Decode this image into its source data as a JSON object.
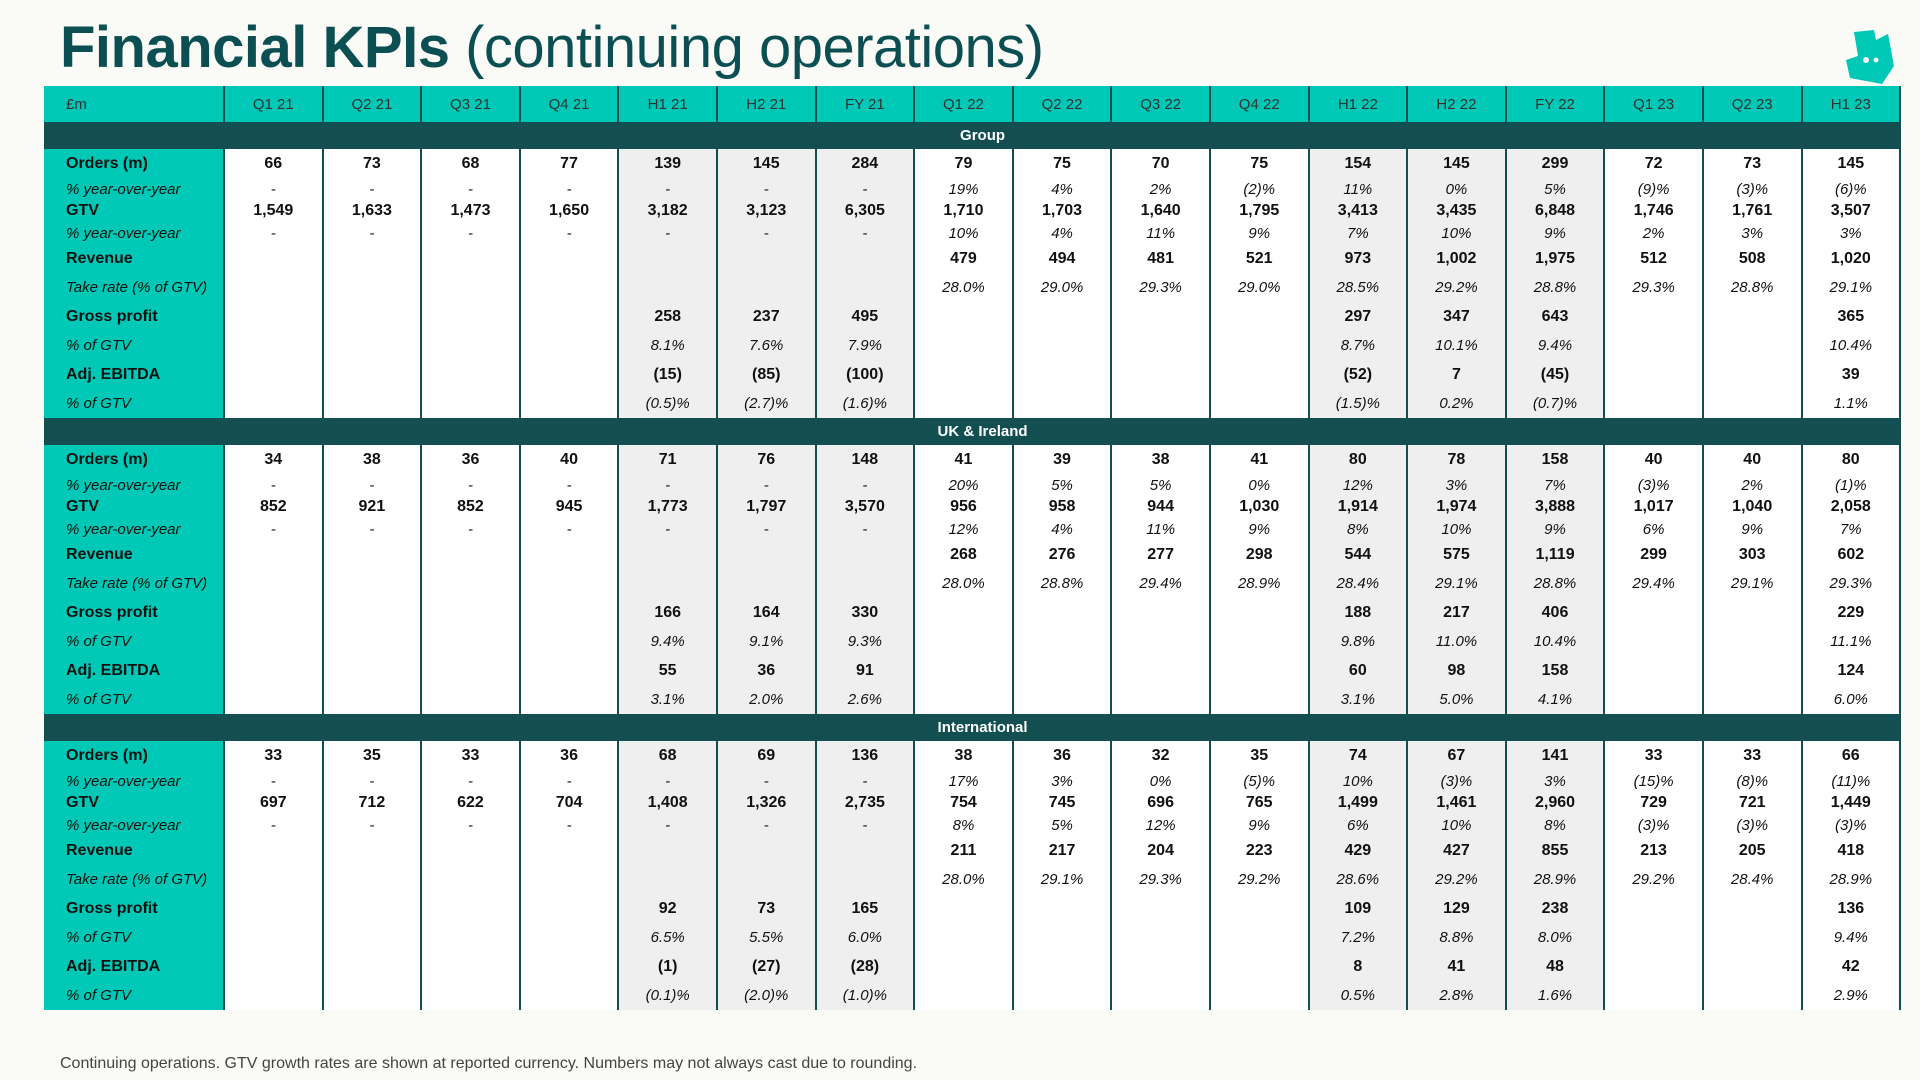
{
  "title": {
    "bold": "Financial KPIs",
    "light": "(continuing operations)"
  },
  "colors": {
    "teal": "#00c8b6",
    "dark": "#134f50",
    "title": "#0b4f53"
  },
  "logo": "deliveroo-kangaroo-icon",
  "columns": [
    "£m",
    "Q1 21",
    "Q2 21",
    "Q3 21",
    "Q4 21",
    "H1 21",
    "H2 21",
    "FY 21",
    "Q1 22",
    "Q2 22",
    "Q3 22",
    "Q4 22",
    "H1 22",
    "H2 22",
    "FY 22",
    "Q1 23",
    "Q2 23",
    "H1 23"
  ],
  "sections": [
    {
      "name": "Group",
      "rows": [
        {
          "label": "Orders (m)",
          "type": "main",
          "values": [
            "66",
            "73",
            "68",
            "77",
            "139",
            "145",
            "284",
            "79",
            "75",
            "70",
            "75",
            "154",
            "145",
            "299",
            "72",
            "73",
            "145"
          ]
        },
        {
          "label": "% year-over-year",
          "type": "sub",
          "short": true,
          "values": [
            "-",
            "-",
            "-",
            "-",
            "-",
            "-",
            "-",
            "19%",
            "4%",
            "2%",
            "(2)%",
            "11%",
            "0%",
            "5%",
            "(9)%",
            "(3)%",
            "(6)%"
          ]
        },
        {
          "label": "GTV",
          "type": "main",
          "short": true,
          "values": [
            "1,549",
            "1,633",
            "1,473",
            "1,650",
            "3,182",
            "3,123",
            "6,305",
            "1,710",
            "1,703",
            "1,640",
            "1,795",
            "3,413",
            "3,435",
            "6,848",
            "1,746",
            "1,761",
            "3,507"
          ]
        },
        {
          "label": "% year-over-year",
          "type": "sub",
          "short": true,
          "values": [
            "-",
            "-",
            "-",
            "-",
            "-",
            "-",
            "-",
            "10%",
            "4%",
            "11%",
            "9%",
            "7%",
            "10%",
            "9%",
            "2%",
            "3%",
            "3%"
          ]
        },
        {
          "label": "Revenue",
          "type": "main",
          "values": [
            "",
            "",
            "",
            "",
            "",
            "",
            "",
            "479",
            "494",
            "481",
            "521",
            "973",
            "1,002",
            "1,975",
            "512",
            "508",
            "1,020"
          ]
        },
        {
          "label": "Take rate (% of GTV)",
          "type": "sub",
          "values": [
            "",
            "",
            "",
            "",
            "",
            "",
            "",
            "28.0%",
            "29.0%",
            "29.3%",
            "29.0%",
            "28.5%",
            "29.2%",
            "28.8%",
            "29.3%",
            "28.8%",
            "29.1%"
          ]
        },
        {
          "label": "Gross profit",
          "type": "main",
          "values": [
            "",
            "",
            "",
            "",
            "258",
            "237",
            "495",
            "",
            "",
            "",
            "",
            "297",
            "347",
            "643",
            "",
            "",
            "365"
          ]
        },
        {
          "label": "% of GTV",
          "type": "sub",
          "values": [
            "",
            "",
            "",
            "",
            "8.1%",
            "7.6%",
            "7.9%",
            "",
            "",
            "",
            "",
            "8.7%",
            "10.1%",
            "9.4%",
            "",
            "",
            "10.4%"
          ]
        },
        {
          "label": "Adj. EBITDA",
          "type": "main",
          "values": [
            "",
            "",
            "",
            "",
            "(15)",
            "(85)",
            "(100)",
            "",
            "",
            "",
            "",
            "(52)",
            "7",
            "(45)",
            "",
            "",
            "39"
          ]
        },
        {
          "label": "% of GTV",
          "type": "sub",
          "values": [
            "",
            "",
            "",
            "",
            "(0.5)%",
            "(2.7)%",
            "(1.6)%",
            "",
            "",
            "",
            "",
            "(1.5)%",
            "0.2%",
            "(0.7)%",
            "",
            "",
            "1.1%"
          ]
        }
      ]
    },
    {
      "name": "UK & Ireland",
      "rows": [
        {
          "label": "Orders (m)",
          "type": "main",
          "values": [
            "34",
            "38",
            "36",
            "40",
            "71",
            "76",
            "148",
            "41",
            "39",
            "38",
            "41",
            "80",
            "78",
            "158",
            "40",
            "40",
            "80"
          ]
        },
        {
          "label": "% year-over-year",
          "type": "sub",
          "short": true,
          "values": [
            "-",
            "-",
            "-",
            "-",
            "-",
            "-",
            "-",
            "20%",
            "5%",
            "5%",
            "0%",
            "12%",
            "3%",
            "7%",
            "(3)%",
            "2%",
            "(1)%"
          ]
        },
        {
          "label": "GTV",
          "type": "main",
          "short": true,
          "values": [
            "852",
            "921",
            "852",
            "945",
            "1,773",
            "1,797",
            "3,570",
            "956",
            "958",
            "944",
            "1,030",
            "1,914",
            "1,974",
            "3,888",
            "1,017",
            "1,040",
            "2,058"
          ]
        },
        {
          "label": "% year-over-year",
          "type": "sub",
          "short": true,
          "values": [
            "-",
            "-",
            "-",
            "-",
            "-",
            "-",
            "-",
            "12%",
            "4%",
            "11%",
            "9%",
            "8%",
            "10%",
            "9%",
            "6%",
            "9%",
            "7%"
          ]
        },
        {
          "label": "Revenue",
          "type": "main",
          "values": [
            "",
            "",
            "",
            "",
            "",
            "",
            "",
            "268",
            "276",
            "277",
            "298",
            "544",
            "575",
            "1,119",
            "299",
            "303",
            "602"
          ]
        },
        {
          "label": "Take rate (% of GTV)",
          "type": "sub",
          "values": [
            "",
            "",
            "",
            "",
            "",
            "",
            "",
            "28.0%",
            "28.8%",
            "29.4%",
            "28.9%",
            "28.4%",
            "29.1%",
            "28.8%",
            "29.4%",
            "29.1%",
            "29.3%"
          ]
        },
        {
          "label": "Gross profit",
          "type": "main",
          "values": [
            "",
            "",
            "",
            "",
            "166",
            "164",
            "330",
            "",
            "",
            "",
            "",
            "188",
            "217",
            "406",
            "",
            "",
            "229"
          ]
        },
        {
          "label": "% of GTV",
          "type": "sub",
          "values": [
            "",
            "",
            "",
            "",
            "9.4%",
            "9.1%",
            "9.3%",
            "",
            "",
            "",
            "",
            "9.8%",
            "11.0%",
            "10.4%",
            "",
            "",
            "11.1%"
          ]
        },
        {
          "label": "Adj. EBITDA",
          "type": "main",
          "values": [
            "",
            "",
            "",
            "",
            "55",
            "36",
            "91",
            "",
            "",
            "",
            "",
            "60",
            "98",
            "158",
            "",
            "",
            "124"
          ]
        },
        {
          "label": "% of GTV",
          "type": "sub",
          "values": [
            "",
            "",
            "",
            "",
            "3.1%",
            "2.0%",
            "2.6%",
            "",
            "",
            "",
            "",
            "3.1%",
            "5.0%",
            "4.1%",
            "",
            "",
            "6.0%"
          ]
        }
      ]
    },
    {
      "name": "International",
      "rows": [
        {
          "label": "Orders (m)",
          "type": "main",
          "values": [
            "33",
            "35",
            "33",
            "36",
            "68",
            "69",
            "136",
            "38",
            "36",
            "32",
            "35",
            "74",
            "67",
            "141",
            "33",
            "33",
            "66"
          ]
        },
        {
          "label": "% year-over-year",
          "type": "sub",
          "short": true,
          "values": [
            "-",
            "-",
            "-",
            "-",
            "-",
            "-",
            "-",
            "17%",
            "3%",
            "0%",
            "(5)%",
            "10%",
            "(3)%",
            "3%",
            "(15)%",
            "(8)%",
            "(11)%"
          ]
        },
        {
          "label": "GTV",
          "type": "main",
          "short": true,
          "values": [
            "697",
            "712",
            "622",
            "704",
            "1,408",
            "1,326",
            "2,735",
            "754",
            "745",
            "696",
            "765",
            "1,499",
            "1,461",
            "2,960",
            "729",
            "721",
            "1,449"
          ]
        },
        {
          "label": "% year-over-year",
          "type": "sub",
          "short": true,
          "values": [
            "-",
            "-",
            "-",
            "-",
            "-",
            "-",
            "-",
            "8%",
            "5%",
            "12%",
            "9%",
            "6%",
            "10%",
            "8%",
            "(3)%",
            "(3)%",
            "(3)%"
          ]
        },
        {
          "label": "Revenue",
          "type": "main",
          "values": [
            "",
            "",
            "",
            "",
            "",
            "",
            "",
            "211",
            "217",
            "204",
            "223",
            "429",
            "427",
            "855",
            "213",
            "205",
            "418"
          ]
        },
        {
          "label": "Take rate (% of GTV)",
          "type": "sub",
          "values": [
            "",
            "",
            "",
            "",
            "",
            "",
            "",
            "28.0%",
            "29.1%",
            "29.3%",
            "29.2%",
            "28.6%",
            "29.2%",
            "28.9%",
            "29.2%",
            "28.4%",
            "28.9%"
          ]
        },
        {
          "label": "Gross profit",
          "type": "main",
          "values": [
            "",
            "",
            "",
            "",
            "92",
            "73",
            "165",
            "",
            "",
            "",
            "",
            "109",
            "129",
            "238",
            "",
            "",
            "136"
          ]
        },
        {
          "label": "% of GTV",
          "type": "sub",
          "values": [
            "",
            "",
            "",
            "",
            "6.5%",
            "5.5%",
            "6.0%",
            "",
            "",
            "",
            "",
            "7.2%",
            "8.8%",
            "8.0%",
            "",
            "",
            "9.4%"
          ]
        },
        {
          "label": "Adj. EBITDA",
          "type": "main",
          "values": [
            "",
            "",
            "",
            "",
            "(1)",
            "(27)",
            "(28)",
            "",
            "",
            "",
            "",
            "8",
            "41",
            "48",
            "",
            "",
            "42"
          ]
        },
        {
          "label": "% of GTV",
          "type": "sub",
          "values": [
            "",
            "",
            "",
            "",
            "(0.1)%",
            "(2.0)%",
            "(1.0)%",
            "",
            "",
            "",
            "",
            "0.5%",
            "2.8%",
            "1.6%",
            "",
            "",
            "2.9%"
          ]
        }
      ]
    }
  ],
  "footnote": "Continuing operations. GTV growth rates are shown at reported currency. Numbers may not always cast due to rounding."
}
